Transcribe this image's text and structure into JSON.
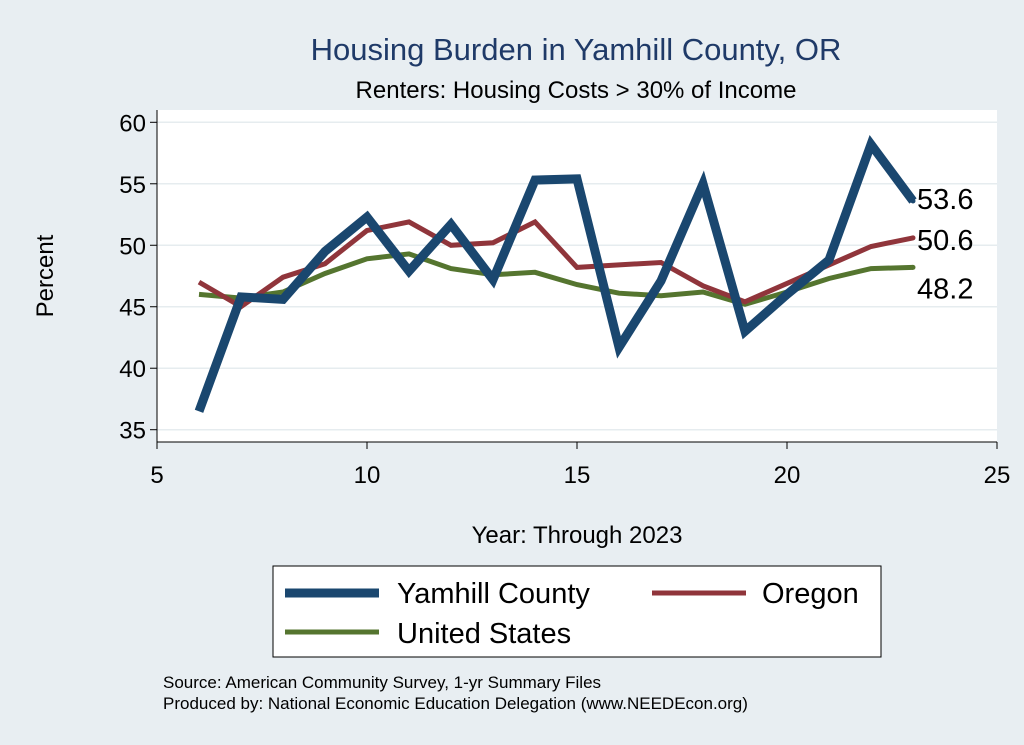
{
  "chart_data": {
    "type": "line",
    "title": "Housing Burden in Yamhill County, OR",
    "subtitle": "Renters: Housing Costs > 30% of Income",
    "xlabel": "Year: Through 2023",
    "ylabel": "Percent",
    "xlim": [
      5,
      25
    ],
    "ylim": [
      34,
      61
    ],
    "xticks": [
      5,
      10,
      15,
      20,
      25
    ],
    "yticks": [
      35,
      40,
      45,
      50,
      55,
      60
    ],
    "grid": true,
    "x": [
      6,
      7,
      8,
      9,
      10,
      11,
      12,
      13,
      14,
      15,
      16,
      17,
      18,
      19,
      20,
      21,
      22,
      23
    ],
    "series": [
      {
        "name": "Yamhill County",
        "color": "#1a476f",
        "values": [
          36.5,
          45.8,
          45.6,
          49.5,
          52.3,
          47.9,
          51.7,
          47.2,
          55.3,
          55.4,
          41.7,
          47.1,
          55.0,
          43.0,
          46.0,
          48.8,
          58.2,
          53.6
        ],
        "end_label": "53.6"
      },
      {
        "name": "Oregon",
        "color": "#90353b",
        "values": [
          47.0,
          45.0,
          47.4,
          48.5,
          51.2,
          51.9,
          50.0,
          50.2,
          51.9,
          48.2,
          48.4,
          48.6,
          46.7,
          45.4,
          46.9,
          48.4,
          49.9,
          50.6
        ],
        "end_label": "50.6"
      },
      {
        "name": "United States",
        "color": "#55752f",
        "values": [
          46.0,
          45.7,
          46.2,
          47.7,
          48.9,
          49.3,
          48.1,
          47.6,
          47.8,
          46.8,
          46.1,
          45.9,
          46.2,
          45.2,
          46.2,
          47.3,
          48.1,
          48.2
        ],
        "end_label": "48.2"
      }
    ],
    "legend_position": "bottom",
    "notes": [
      "Source: American Community Survey, 1-yr Summary Files",
      "Produced by: National Economic Education Delegation (www.NEEDEcon.org)"
    ]
  }
}
